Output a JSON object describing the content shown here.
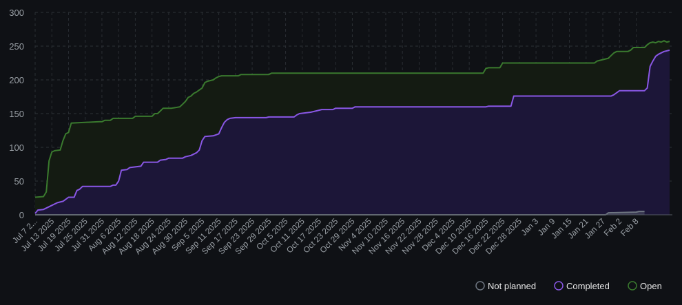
{
  "chart_data": {
    "type": "area",
    "title": "",
    "xlabel": "",
    "ylabel": "",
    "ylim": [
      0,
      300
    ],
    "y_ticks": [
      "0",
      "50",
      "100",
      "150",
      "200",
      "250",
      "300"
    ],
    "x_ticks": [
      "Jul 7 2...",
      "Jul 13 2025",
      "Jul 19 2025",
      "Jul 25 2025",
      "Jul 31 2025",
      "Aug 6 2025",
      "Aug 12 2025",
      "Aug 18 2025",
      "Aug 24 2025",
      "Aug 30 2025",
      "Sep 5 2025",
      "Sep 11 2025",
      "Sep 17 2025",
      "Sep 23 2025",
      "Sep 29 2025",
      "Oct 5 2025",
      "Oct 11 2025",
      "Oct 17 2025",
      "Oct 23 2025",
      "Oct 29 2025",
      "Nov 4 2025",
      "Nov 10 2025",
      "Nov 16 2025",
      "Nov 22 2025",
      "Nov 28 2025",
      "Dec 4 2025",
      "Dec 10 2025",
      "Dec 16 2025",
      "Dec 22 2025",
      "Dec 28 2025",
      "Jan 3",
      "Jan 9",
      "Jan 15",
      "Jan 21",
      "Jan 27",
      "Feb 2",
      "Feb 8"
    ],
    "grid": true,
    "legend_position": "bottom-right",
    "series": [
      {
        "name": "Not planned",
        "color": "#6e7681",
        "fill": "#6e7681",
        "points": [
          [
            0,
            0
          ],
          [
            205,
            0
          ],
          [
            206,
            3
          ],
          [
            216,
            4
          ],
          [
            217,
            5
          ],
          [
            219,
            5
          ]
        ]
      },
      {
        "name": "Completed",
        "color": "#8957e5",
        "fill": "#1c1638",
        "points": [
          [
            0,
            2
          ],
          [
            1,
            7
          ],
          [
            3,
            8
          ],
          [
            6,
            14
          ],
          [
            8,
            18
          ],
          [
            10,
            20
          ],
          [
            12,
            26
          ],
          [
            14,
            26
          ],
          [
            15,
            36
          ],
          [
            16,
            38
          ],
          [
            17,
            42
          ],
          [
            27,
            42
          ],
          [
            28,
            44
          ],
          [
            29,
            44
          ],
          [
            30,
            50
          ],
          [
            31,
            66
          ],
          [
            33,
            67
          ],
          [
            34,
            70
          ],
          [
            36,
            71
          ],
          [
            38,
            72
          ],
          [
            39,
            78
          ],
          [
            44,
            78
          ],
          [
            45,
            81
          ],
          [
            47,
            82
          ],
          [
            48,
            84
          ],
          [
            53,
            84
          ],
          [
            54,
            86
          ],
          [
            56,
            88
          ],
          [
            58,
            92
          ],
          [
            59,
            96
          ],
          [
            60,
            110
          ],
          [
            61,
            116
          ],
          [
            64,
            117
          ],
          [
            66,
            120
          ],
          [
            67,
            129
          ],
          [
            68,
            137
          ],
          [
            69,
            141
          ],
          [
            70,
            143
          ],
          [
            72,
            144
          ],
          [
            83,
            144
          ],
          [
            84,
            145
          ],
          [
            93,
            145
          ],
          [
            94,
            148
          ],
          [
            95,
            150
          ],
          [
            99,
            152
          ],
          [
            101,
            154
          ],
          [
            103,
            156
          ],
          [
            107,
            156
          ],
          [
            108,
            158
          ],
          [
            114,
            158
          ],
          [
            115,
            160
          ],
          [
            162,
            160
          ],
          [
            163,
            161
          ],
          [
            171,
            161
          ],
          [
            172,
            176
          ],
          [
            207,
            176
          ],
          [
            208,
            178
          ],
          [
            210,
            184
          ],
          [
            219,
            184
          ],
          [
            220,
            188
          ],
          [
            221,
            220
          ],
          [
            222,
            228
          ],
          [
            223,
            235
          ],
          [
            224,
            238
          ],
          [
            225,
            240
          ],
          [
            226,
            242
          ],
          [
            228,
            244
          ]
        ]
      },
      {
        "name": "Open",
        "color": "#3a7a2e",
        "fill": "#141b12",
        "points": [
          [
            0,
            26
          ],
          [
            3,
            27
          ],
          [
            4,
            34
          ],
          [
            5,
            80
          ],
          [
            6,
            93
          ],
          [
            7,
            95
          ],
          [
            9,
            96
          ],
          [
            10,
            110
          ],
          [
            11,
            120
          ],
          [
            12,
            122
          ],
          [
            13,
            136
          ],
          [
            23,
            138
          ],
          [
            24,
            138
          ],
          [
            25,
            140
          ],
          [
            27,
            140
          ],
          [
            28,
            143
          ],
          [
            35,
            143
          ],
          [
            36,
            146
          ],
          [
            42,
            146
          ],
          [
            43,
            150
          ],
          [
            44,
            150
          ],
          [
            45,
            154
          ],
          [
            46,
            158
          ],
          [
            49,
            158
          ],
          [
            52,
            160
          ],
          [
            53,
            164
          ],
          [
            54,
            168
          ],
          [
            55,
            174
          ],
          [
            56,
            176
          ],
          [
            57,
            180
          ],
          [
            58,
            182
          ],
          [
            60,
            188
          ],
          [
            61,
            196
          ],
          [
            62,
            198
          ],
          [
            64,
            200
          ],
          [
            65,
            203
          ],
          [
            66,
            205
          ],
          [
            67,
            206
          ],
          [
            73,
            206
          ],
          [
            74,
            208
          ],
          [
            84,
            208
          ],
          [
            85,
            210
          ],
          [
            161,
            210
          ],
          [
            162,
            217
          ],
          [
            163,
            218
          ],
          [
            167,
            218
          ],
          [
            168,
            225
          ],
          [
            201,
            225
          ],
          [
            202,
            228
          ],
          [
            203,
            229
          ],
          [
            204,
            230
          ],
          [
            206,
            232
          ],
          [
            207,
            236
          ],
          [
            208,
            240
          ],
          [
            209,
            242
          ],
          [
            213,
            242
          ],
          [
            214,
            244
          ],
          [
            215,
            248
          ],
          [
            219,
            248
          ],
          [
            220,
            252
          ],
          [
            221,
            255
          ],
          [
            222,
            256
          ],
          [
            223,
            255
          ],
          [
            224,
            257
          ],
          [
            225,
            256
          ],
          [
            226,
            258
          ],
          [
            227,
            256
          ],
          [
            228,
            257
          ]
        ]
      }
    ]
  }
}
